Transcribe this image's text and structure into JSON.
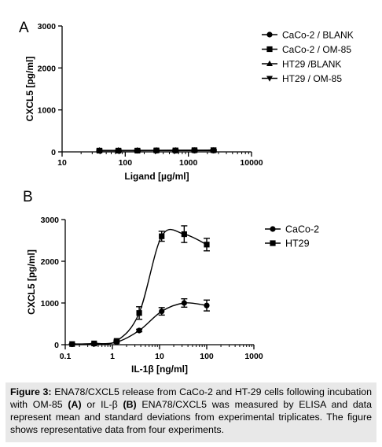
{
  "chart_data": [
    {
      "panel_label": "A",
      "type": "line",
      "xscale": "log",
      "xlim": [
        10,
        10000
      ],
      "ylim": [
        0,
        3000
      ],
      "xlabel": "Ligand [µg/ml]",
      "ylabel": "CXCL5 [pg/ml]",
      "xticks": [
        "10",
        "100",
        "1000",
        "10000"
      ],
      "yticks": [
        "0",
        "1000",
        "2000",
        "3000"
      ],
      "legend_position": "top-right",
      "x": [
        39,
        78,
        156,
        312,
        625,
        1250,
        2500
      ],
      "series": [
        {
          "name": "CaCo-2 / BLANK",
          "marker": "circle",
          "values": [
            30,
            30,
            30,
            30,
            30,
            30,
            30
          ],
          "err": [
            15,
            15,
            15,
            15,
            15,
            15,
            15
          ]
        },
        {
          "name": "CaCo-2 / OM-85",
          "marker": "square",
          "values": [
            30,
            30,
            30,
            35,
            35,
            40,
            40
          ],
          "err": [
            15,
            15,
            15,
            15,
            15,
            15,
            15
          ]
        },
        {
          "name": "HT29 /BLANK",
          "marker": "triangle-up",
          "values": [
            35,
            35,
            35,
            35,
            35,
            35,
            35
          ],
          "err": [
            15,
            15,
            15,
            15,
            15,
            15,
            15
          ]
        },
        {
          "name": "HT29 / OM-85",
          "marker": "triangle-down",
          "values": [
            30,
            30,
            35,
            35,
            40,
            40,
            45
          ],
          "err": [
            15,
            15,
            15,
            15,
            15,
            15,
            15
          ]
        }
      ]
    },
    {
      "panel_label": "B",
      "type": "line",
      "xscale": "log",
      "xlim": [
        0.1,
        1000
      ],
      "ylim": [
        0,
        3000
      ],
      "xlabel": "IL-1β [ng/ml]",
      "ylabel": "CXCL5 [pg/ml]",
      "xticks": [
        "0.1",
        "1",
        "10",
        "100",
        "1000"
      ],
      "yticks": [
        "0",
        "1000",
        "2000",
        "3000"
      ],
      "legend_position": "top-right",
      "x": [
        0.14,
        0.41,
        1.23,
        3.7,
        11.1,
        33.3,
        100
      ],
      "series": [
        {
          "name": "CaCo-2",
          "marker": "circle",
          "values": [
            10,
            20,
            60,
            340,
            800,
            1000,
            940
          ],
          "err": [
            10,
            10,
            20,
            30,
            90,
            100,
            130
          ]
        },
        {
          "name": "HT29",
          "marker": "square",
          "values": [
            15,
            30,
            90,
            760,
            2600,
            2650,
            2400
          ],
          "err": [
            10,
            10,
            20,
            150,
            120,
            200,
            150
          ]
        }
      ]
    }
  ],
  "caption": {
    "bold_label": "Figure 3:",
    "text_1": "ENA78/CXCL5 release from CaCo-2 and HT-29 cells following incubation with OM-85",
    "bold_a": "(A)",
    "text_2": "or IL-β",
    "bold_b": "(B)",
    "text_3": "ENA78/CXCL5 was measured by ELISA and data represent mean and standard deviations from experimental triplicates. The figure shows representative data from four experiments."
  }
}
